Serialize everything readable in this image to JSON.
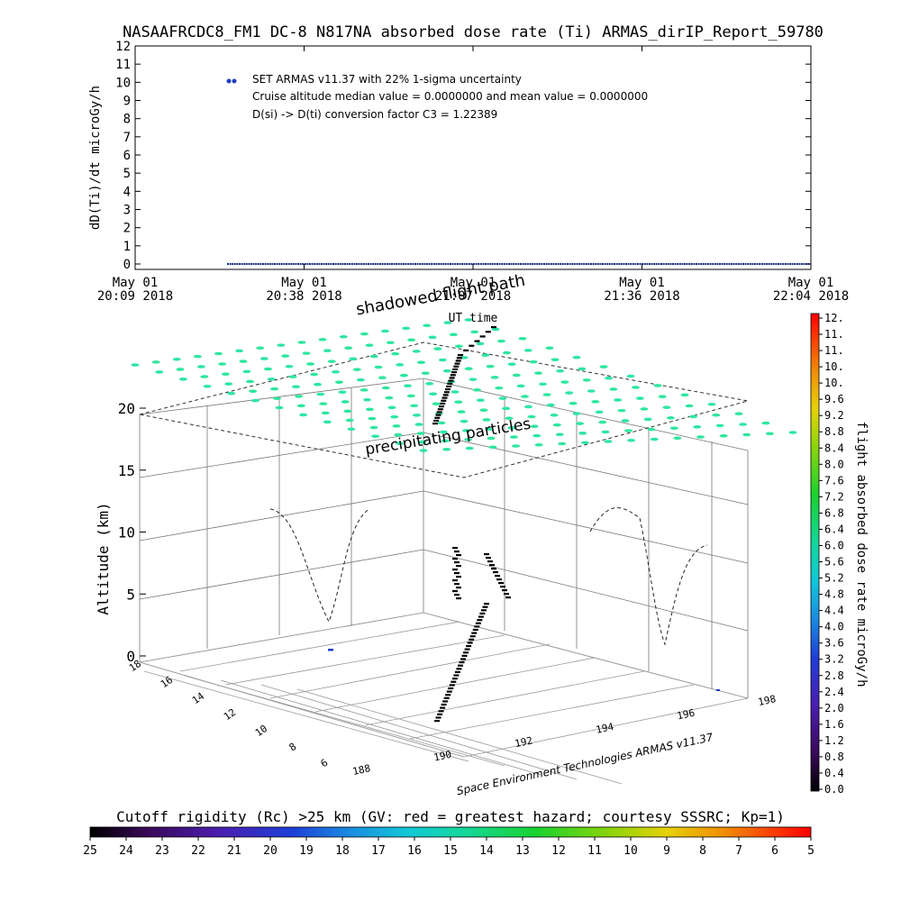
{
  "chart_data": [
    {
      "type": "scatter",
      "title": "NASAAFRCDC8_FM1 DC-8   N817NA absorbed dose rate (Ti) ARMAS_dirIP_Report_59780",
      "ylabel": "dD(Ti)/dt microGy/h",
      "xlabel": "UT time",
      "ylim": [
        0,
        12
      ],
      "yticks": [
        "0",
        "1",
        "2",
        "3",
        "4",
        "5",
        "6",
        "7",
        "8",
        "9",
        "10",
        "11",
        "12"
      ],
      "xticks": [
        {
          "d": "May 01",
          "t": "20:09 2018"
        },
        {
          "d": "May 01",
          "t": "20:38 2018"
        },
        {
          "d": "May 01",
          "t": "21:07 2018"
        },
        {
          "d": "May 01",
          "t": "21:36 2018"
        },
        {
          "d": "May 01",
          "t": "22:04 2018"
        }
      ],
      "annotations": [
        "SET ARMAS v11.37 with 22% 1-sigma uncertainty",
        "Cruise altitude median value = 0.0000000 and mean value = 0.0000000",
        "D(si) -> D(ti) conversion factor C3 = 1.22389"
      ],
      "series": [
        {
          "name": "SET ARMAS v11.37 with 22% 1-sigma uncertainty",
          "color": "#1f3fbf",
          "x_range": [
            "20:26",
            "22:04"
          ],
          "y_constant": 0
        }
      ]
    },
    {
      "type": "scatter",
      "title": "",
      "zlabel": "Altitude (km)",
      "zticks": [
        "0",
        "5",
        "10",
        "15",
        "20"
      ],
      "lat_ticks": [
        "18",
        "16",
        "14",
        "12",
        "10",
        "8",
        "6"
      ],
      "lon_ticks": [
        "188",
        "190",
        "192",
        "194",
        "196",
        "198"
      ],
      "labels": {
        "top": "precipitating particles",
        "shadow": "shadowed flight path",
        "credit": "Space Environment Technologies ARMAS v11.37"
      },
      "colorbar": {
        "label": "flight absorbed dose rate microGy/h",
        "ticks": [
          "0.0",
          "0.4",
          "0.8",
          "1.2",
          "1.6",
          "2.0",
          "2.4",
          "2.8",
          "3.2",
          "3.6",
          "4.0",
          "4.4",
          "4.8",
          "5.2",
          "5.6",
          "6.0",
          "6.4",
          "6.8",
          "7.2",
          "7.6",
          "8.0",
          "8.4",
          "8.8",
          "9.2",
          "9.6",
          "10.",
          "10.",
          "11.",
          "11.",
          "12."
        ]
      },
      "rigidity_bar": {
        "label": "Cutoff rigidity (Rc) >25 km (GV: red = greatest hazard; courtesy SSSRC; Kp=1)",
        "ticks": [
          "25",
          "24",
          "23",
          "22",
          "21",
          "20",
          "19",
          "18",
          "17",
          "16",
          "15",
          "14",
          "13",
          "12",
          "11",
          "10",
          "9",
          "8",
          "7",
          "6",
          "5"
        ]
      }
    }
  ]
}
